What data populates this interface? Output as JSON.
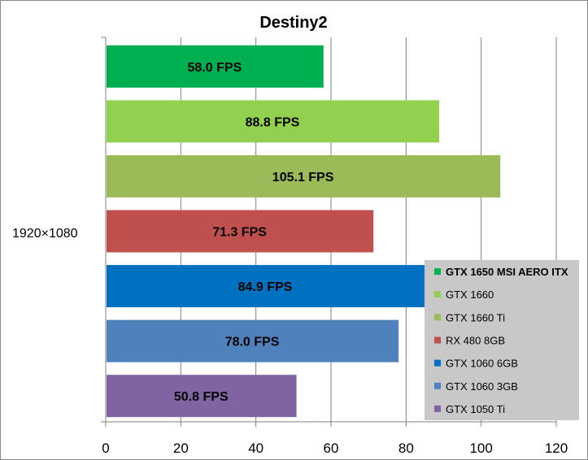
{
  "chart_data": {
    "type": "bar",
    "orientation": "horizontal",
    "title": "Destiny2",
    "category": "1920×1080",
    "xlim": [
      0,
      120
    ],
    "x_ticks": [
      0,
      20,
      40,
      60,
      80,
      100,
      120
    ],
    "grid": true,
    "legend_position": "bottom-right",
    "series": [
      {
        "name": "GTX 1650 MSI AERO ITX",
        "value": 58.0,
        "label": "58.0 FPS",
        "color": "#00b050",
        "bold": true
      },
      {
        "name": "GTX 1660",
        "value": 88.8,
        "label": "88.8 FPS",
        "color": "#92d050",
        "bold": false
      },
      {
        "name": "GTX 1660 Ti",
        "value": 105.1,
        "label": "105.1 FPS",
        "color": "#9bbb59",
        "bold": false
      },
      {
        "name": "RX 480 8GB",
        "value": 71.3,
        "label": "71.3 FPS",
        "color": "#c0504d",
        "bold": false
      },
      {
        "name": "GTX 1060 6GB",
        "value": 84.9,
        "label": "84.9 FPS",
        "color": "#0070c0",
        "bold": false
      },
      {
        "name": "GTX 1060 3GB",
        "value": 78.0,
        "label": "78.0 FPS",
        "color": "#4f81bd",
        "bold": false
      },
      {
        "name": "GTX 1050 Ti",
        "value": 50.8,
        "label": "50.8 FPS",
        "color": "#8064a2",
        "bold": false
      }
    ]
  }
}
